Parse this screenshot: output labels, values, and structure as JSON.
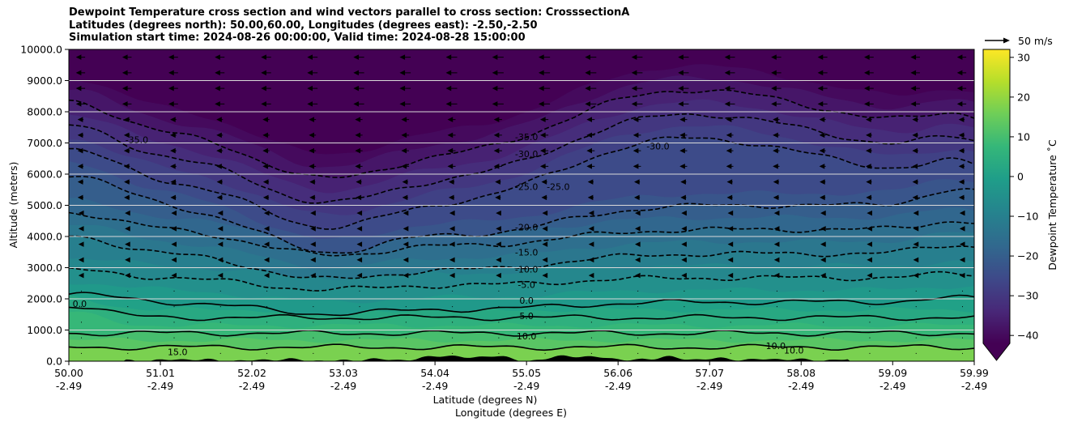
{
  "title_lines": [
    "Dewpoint Temperature cross section and wind vectors parallel to cross section: CrosssectionA",
    "Latitudes (degrees north): 50.00,60.00, Longitudes (degrees east): -2.50,-2.50",
    "Simulation start time: 2024-08-26 00:00:00, Valid time: 2024-08-28 15:00:00"
  ],
  "quiver_key": "50 m/s",
  "chart_data": {
    "type": "heatmap",
    "title": "Dewpoint Temperature cross section and wind vectors parallel to cross section: CrosssectionA",
    "xlabel_1": "Latitude (degrees N)",
    "xlabel_2": "Longitude (degrees E)",
    "ylabel": "Altitude (meters)",
    "colorbar_label": "Dewpoint Temperature ˚C",
    "xlim": [
      50.0,
      59.99
    ],
    "ylim": [
      0,
      10000
    ],
    "x_ticks": [
      {
        "lat": "50.00",
        "lon": "-2.49",
        "v": 50.0
      },
      {
        "lat": "51.01",
        "lon": "-2.49",
        "v": 51.01
      },
      {
        "lat": "52.02",
        "lon": "-2.49",
        "v": 52.02
      },
      {
        "lat": "53.03",
        "lon": "-2.49",
        "v": 53.03
      },
      {
        "lat": "54.04",
        "lon": "-2.49",
        "v": 54.04
      },
      {
        "lat": "55.05",
        "lon": "-2.49",
        "v": 55.05
      },
      {
        "lat": "56.06",
        "lon": "-2.49",
        "v": 56.06
      },
      {
        "lat": "57.07",
        "lon": "-2.49",
        "v": 57.07
      },
      {
        "lat": "58.08",
        "lon": "-2.49",
        "v": 58.08
      },
      {
        "lat": "59.09",
        "lon": "-2.49",
        "v": 59.09
      },
      {
        "lat": "59.99",
        "lon": "-2.49",
        "v": 59.99
      }
    ],
    "y_ticks": [
      {
        "label": "0.0",
        "v": 0
      },
      {
        "label": "1000.0",
        "v": 1000
      },
      {
        "label": "2000.0",
        "v": 2000
      },
      {
        "label": "3000.0",
        "v": 3000
      },
      {
        "label": "4000.0",
        "v": 4000
      },
      {
        "label": "5000.0",
        "v": 5000
      },
      {
        "label": "6000.0",
        "v": 6000
      },
      {
        "label": "7000.0",
        "v": 7000
      },
      {
        "label": "8000.0",
        "v": 8000
      },
      {
        "label": "9000.0",
        "v": 9000
      },
      {
        "label": "10000.0",
        "v": 10000
      }
    ],
    "colorbar_range": [
      -42,
      32
    ],
    "colorbar_extend": "min",
    "colorbar_ticks": [
      {
        "label": "30",
        "v": 30
      },
      {
        "label": "20",
        "v": 20
      },
      {
        "label": "10",
        "v": 10
      },
      {
        "label": "0",
        "v": 0
      },
      {
        "label": "−10",
        "v": -10
      },
      {
        "label": "−20",
        "v": -20
      },
      {
        "label": "−30",
        "v": -30
      },
      {
        "label": "−40",
        "v": -40
      }
    ],
    "colormap": [
      "#440154",
      "#482878",
      "#3e4989",
      "#31688e",
      "#26828e",
      "#1f9e89",
      "#35b779",
      "#6ece58",
      "#b5de2b",
      "#fde725"
    ],
    "grid": "horizontal",
    "contour_labels": [
      {
        "text": "-35.0",
        "x": 55.05,
        "y": 7200
      },
      {
        "text": "-30.0",
        "x": 55.05,
        "y": 6650
      },
      {
        "text": "-25.0",
        "x": 55.05,
        "y": 5600
      },
      {
        "text": "-25.0",
        "x": 55.4,
        "y": 5600
      },
      {
        "text": "-20.0",
        "x": 55.05,
        "y": 4300
      },
      {
        "text": "-15.0",
        "x": 55.05,
        "y": 3500
      },
      {
        "text": "-10.0",
        "x": 55.05,
        "y": 2950
      },
      {
        "text": "-5.0",
        "x": 55.05,
        "y": 2450
      },
      {
        "text": "0.0",
        "x": 55.05,
        "y": 1950
      },
      {
        "text": "5.0",
        "x": 55.05,
        "y": 1450
      },
      {
        "text": "10.0",
        "x": 55.05,
        "y": 800
      },
      {
        "text": "-35.0",
        "x": 50.75,
        "y": 7100
      },
      {
        "text": "0.0",
        "x": 50.12,
        "y": 1850
      },
      {
        "text": "15.0",
        "x": 51.2,
        "y": 300
      },
      {
        "text": "-30.0",
        "x": 56.5,
        "y": 6900
      },
      {
        "text": "10.0",
        "x": 57.8,
        "y": 500
      },
      {
        "text": "10.0",
        "x": 58.0,
        "y": 350
      }
    ]
  }
}
